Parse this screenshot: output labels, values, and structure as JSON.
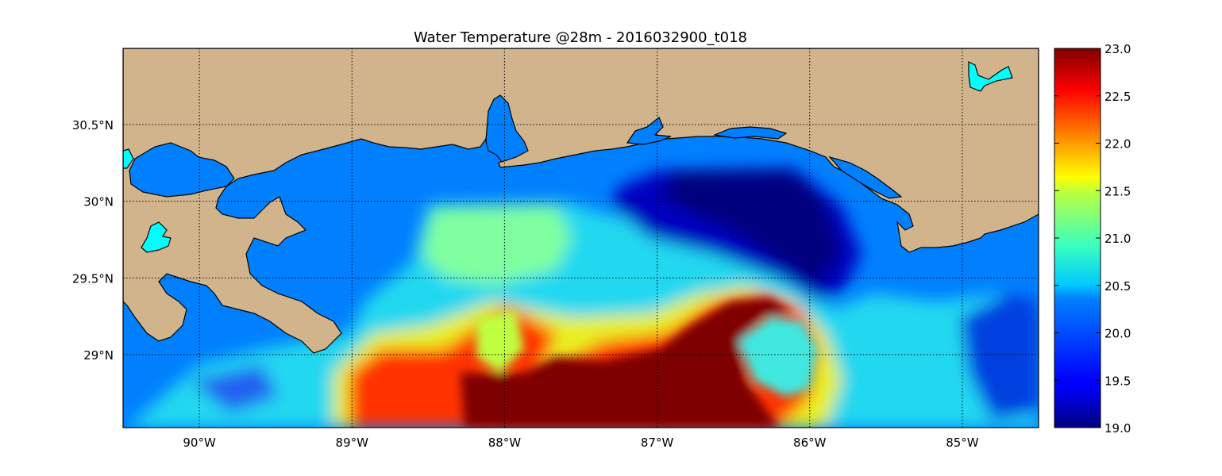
{
  "title": "Water Temperature @28m - 2016032900_t018",
  "map": {
    "lon_range": [
      -90.5,
      -84.5
    ],
    "lat_range": [
      28.55,
      31.0
    ],
    "lon_ticks": [
      {
        "value": -90,
        "label": "90°W"
      },
      {
        "value": -89,
        "label": "89°W"
      },
      {
        "value": -88,
        "label": "88°W"
      },
      {
        "value": -87,
        "label": "87°W"
      },
      {
        "value": -86,
        "label": "86°W"
      },
      {
        "value": -85,
        "label": "85°W"
      }
    ],
    "lat_ticks": [
      {
        "value": 30.5,
        "label": "30.5°N"
      },
      {
        "value": 30.0,
        "label": "30°N"
      },
      {
        "value": 29.5,
        "label": "29.5°N"
      },
      {
        "value": 29.0,
        "label": "29°N"
      }
    ],
    "grid": true,
    "colors": {
      "land": "#d2b48c",
      "shelf_water": "#0080ff",
      "lake": "#00ffff",
      "coastline": "#000000"
    }
  },
  "colorbar": {
    "range": [
      19.0,
      23.0
    ],
    "colormap": "jet",
    "ticks": [
      "23.0",
      "22.5",
      "22.0",
      "21.5",
      "21.0",
      "20.5",
      "20.0",
      "19.5",
      "19.0"
    ],
    "tick_values": [
      23.0,
      22.5,
      22.0,
      21.5,
      21.0,
      20.5,
      20.0,
      19.5,
      19.0
    ]
  }
}
